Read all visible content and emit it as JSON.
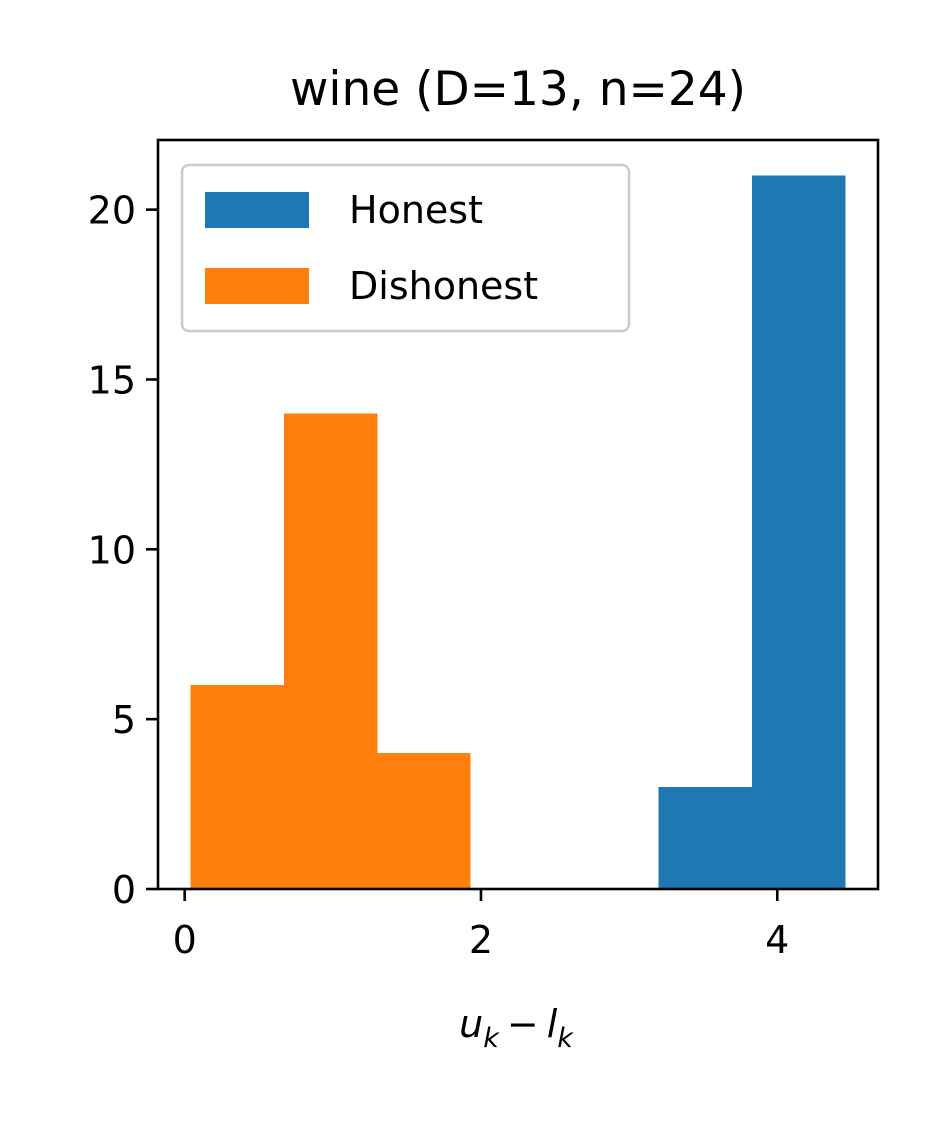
{
  "chart_data": {
    "type": "bar",
    "title": "wine (D=13, n=24)",
    "xlabel": {
      "u": "u",
      "u_sub": "k",
      "operator": "−",
      "l": "l",
      "l_sub": "k"
    },
    "ylabel": "",
    "xlim": [
      -0.18,
      4.68
    ],
    "ylim": [
      0,
      22.05
    ],
    "xticks": [
      0,
      2,
      4
    ],
    "xtick_labels": [
      "0",
      "2",
      "4"
    ],
    "yticks": [
      0,
      5,
      10,
      15,
      20
    ],
    "ytick_labels": [
      "0",
      "5",
      "10",
      "15",
      "20"
    ],
    "grid": false,
    "legend_position": "top-left",
    "series": [
      {
        "name": "Honest",
        "color": "#1f77b4",
        "bin_edges": [
          3.2,
          3.83,
          4.46
        ],
        "values": [
          3,
          21
        ]
      },
      {
        "name": "Dishonest",
        "color": "#ff7f0e",
        "bin_edges": [
          0.04,
          0.67,
          1.3,
          1.93
        ],
        "values": [
          6,
          14,
          4
        ]
      }
    ]
  }
}
